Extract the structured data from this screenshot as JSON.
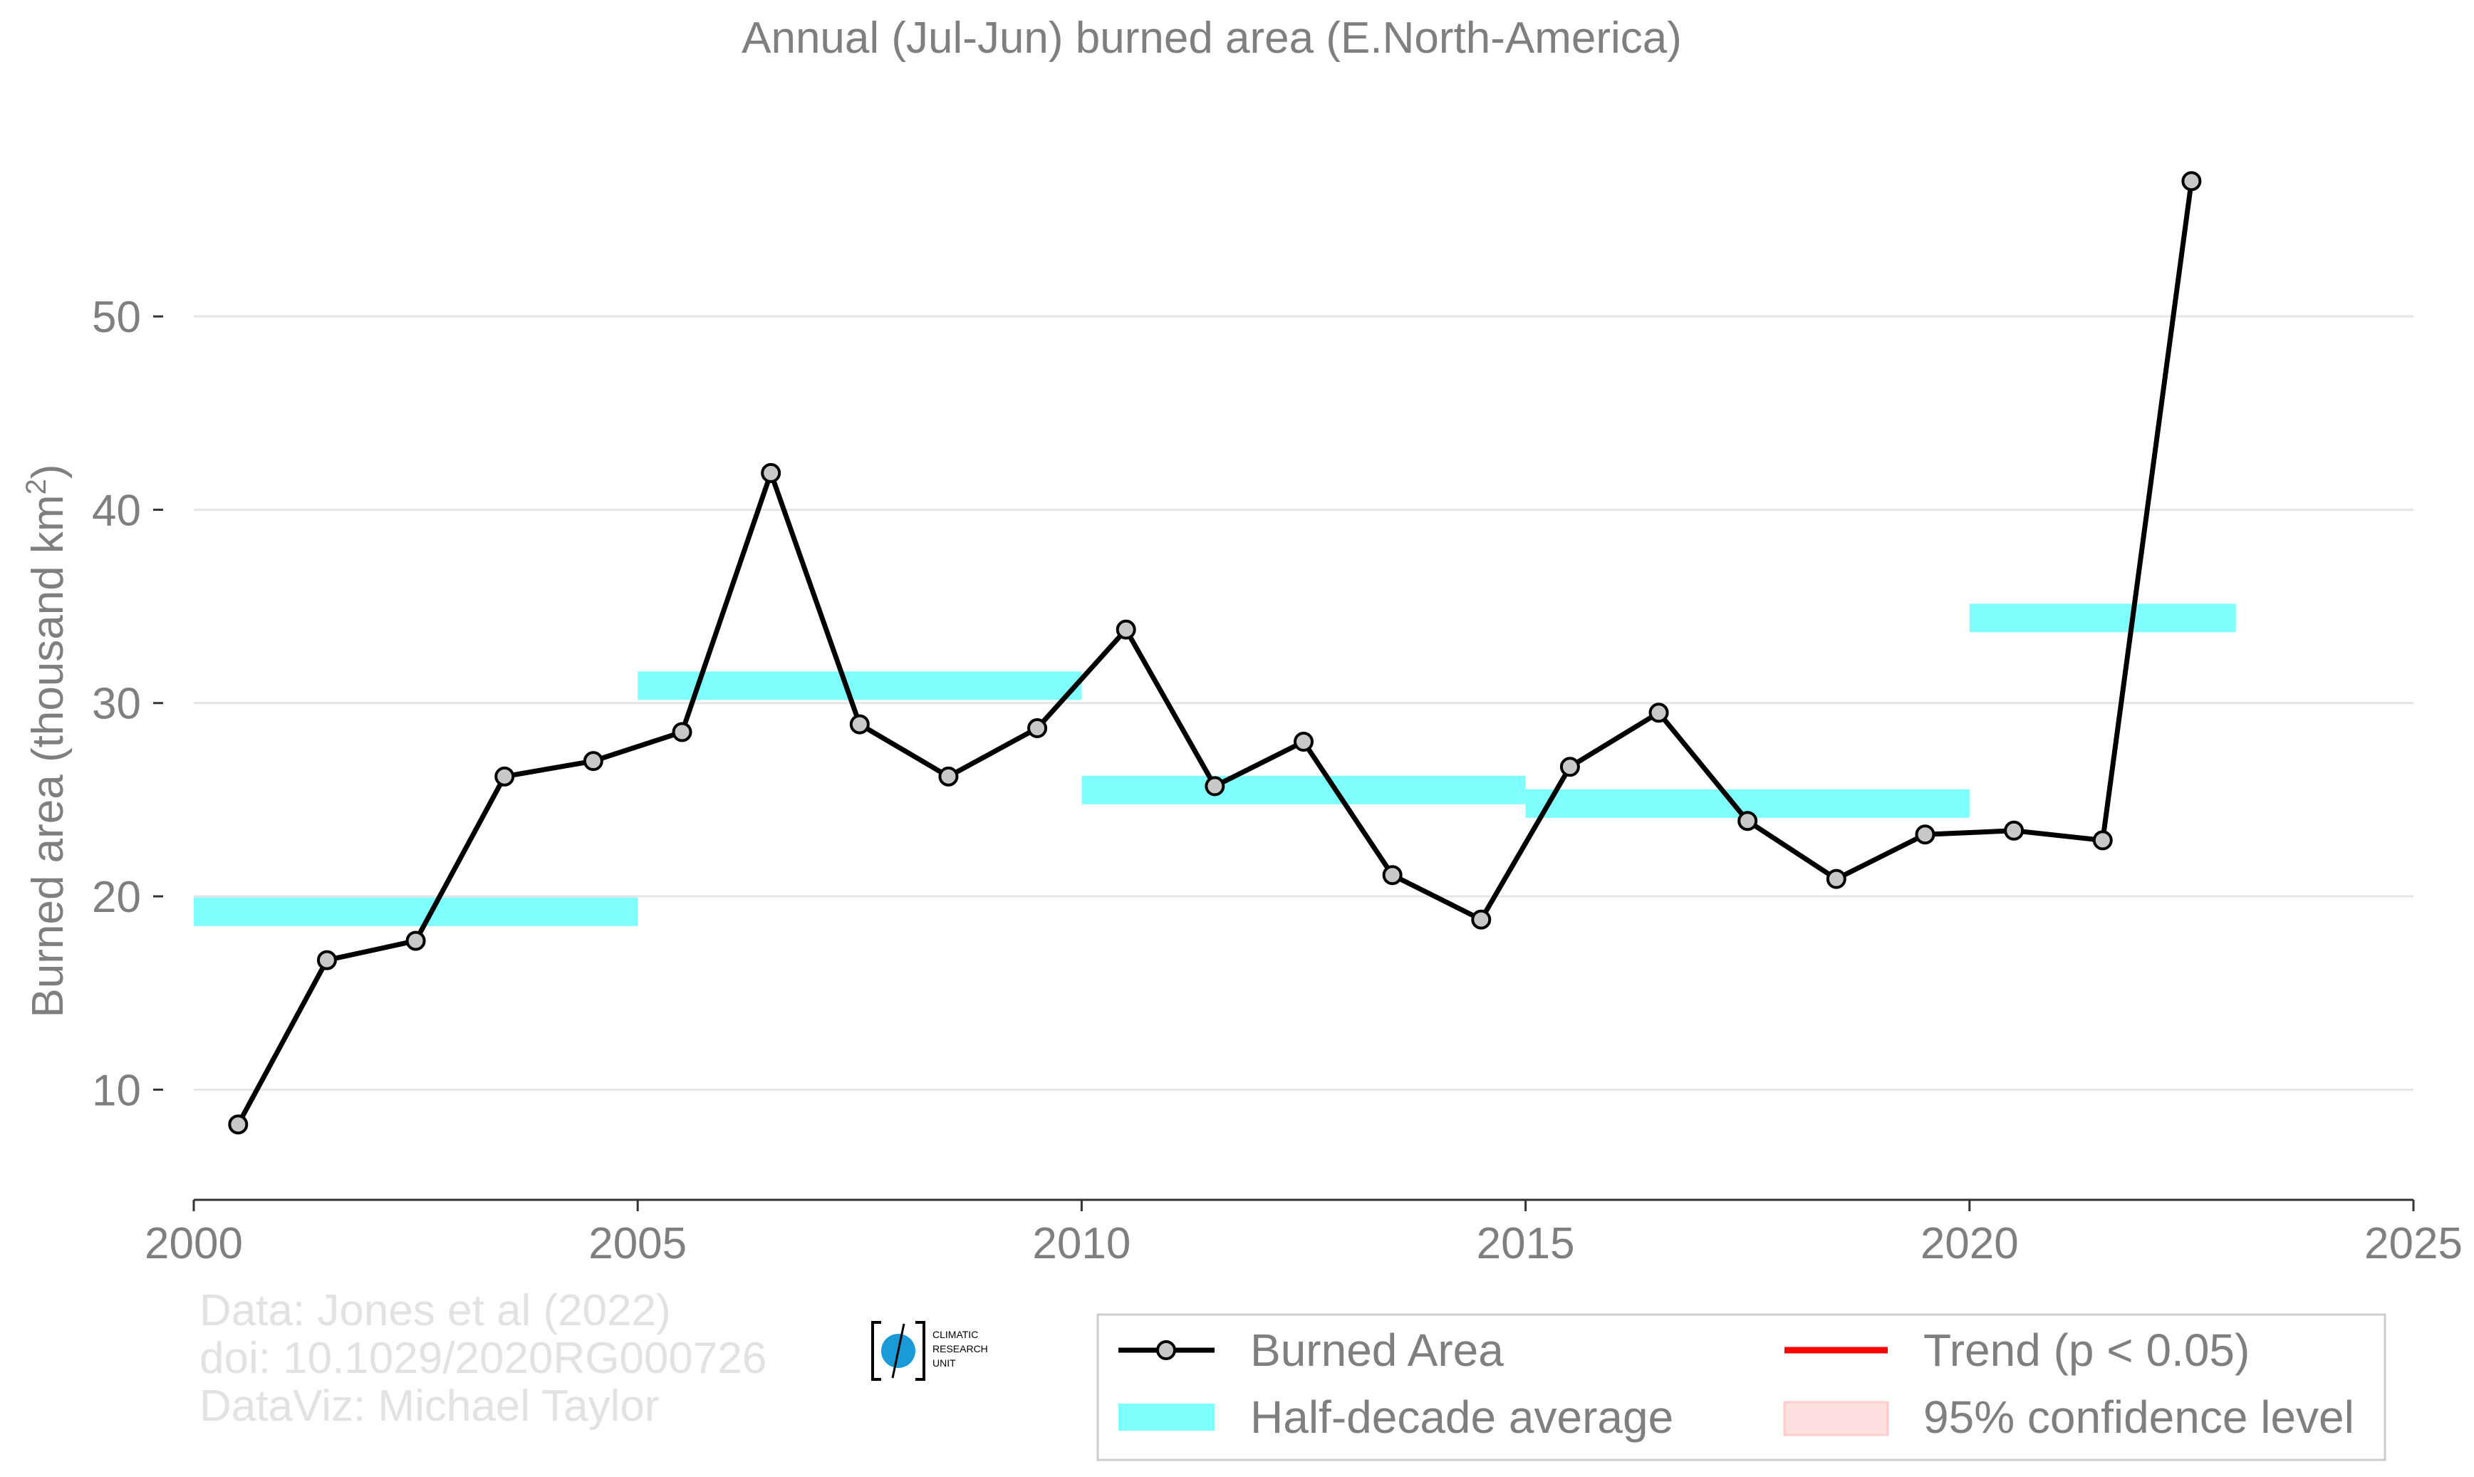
{
  "chart_data": {
    "type": "line",
    "title": "Annual (Jul-Jun) burned area (E.North-America)",
    "xlabel": "",
    "ylabel": "Burned area (thousand km",
    "ylabel_sup": "2",
    "ylabel_close": ")",
    "xlim": [
      2000,
      2025
    ],
    "ylim": [
      4.3,
      62.5
    ],
    "x_ticks": [
      2000,
      2005,
      2010,
      2015,
      2020,
      2025
    ],
    "y_ticks": [
      10,
      20,
      30,
      40,
      50
    ],
    "grid": "horizontal",
    "legend_position": "bottom-right",
    "series": [
      {
        "name": "Burned Area",
        "color": "#000000",
        "marker_color": "#c8c8c8",
        "x": [
          2000.5,
          2001.5,
          2002.5,
          2003.5,
          2004.5,
          2005.5,
          2006.5,
          2007.5,
          2008.5,
          2009.5,
          2010.5,
          2011.5,
          2012.5,
          2013.5,
          2014.5,
          2015.5,
          2016.5,
          2017.5,
          2018.5,
          2019.5,
          2020.5,
          2021.5,
          2022.5
        ],
        "y": [
          8.2,
          16.7,
          17.7,
          26.2,
          27.0,
          28.5,
          41.9,
          28.9,
          26.2,
          28.7,
          33.8,
          25.7,
          28.0,
          21.1,
          18.8,
          26.7,
          29.5,
          23.9,
          20.9,
          23.2,
          23.4,
          22.9,
          57.0
        ]
      },
      {
        "name": "Half-decade average",
        "color": "#80ffff",
        "segments": [
          {
            "x0": 2000,
            "x1": 2005,
            "y": 19.2
          },
          {
            "x0": 2005,
            "x1": 2010,
            "y": 30.9
          },
          {
            "x0": 2010,
            "x1": 2015,
            "y": 25.5
          },
          {
            "x0": 2015,
            "x1": 2020,
            "y": 24.8
          },
          {
            "x0": 2020,
            "x1": 2023,
            "y": 34.4
          }
        ]
      },
      {
        "name": "Trend (p < 0.05)",
        "color": "#ff0000"
      },
      {
        "name": "95% confidence level",
        "color": "#ffe0e0"
      }
    ],
    "credits": [
      "Data: Jones et al (2022)",
      "doi: 10.1029/2020RG000726",
      "DataViz: Michael Taylor"
    ],
    "logo_text": [
      "CLIMATIC",
      "RESEARCH",
      "UNIT"
    ],
    "colors": {
      "text": "#7f7f7f",
      "grid": "#e6e6e6",
      "axis": "#333333",
      "credit": "#e2e2e2",
      "logo_blue": "#1a9ad6"
    }
  }
}
